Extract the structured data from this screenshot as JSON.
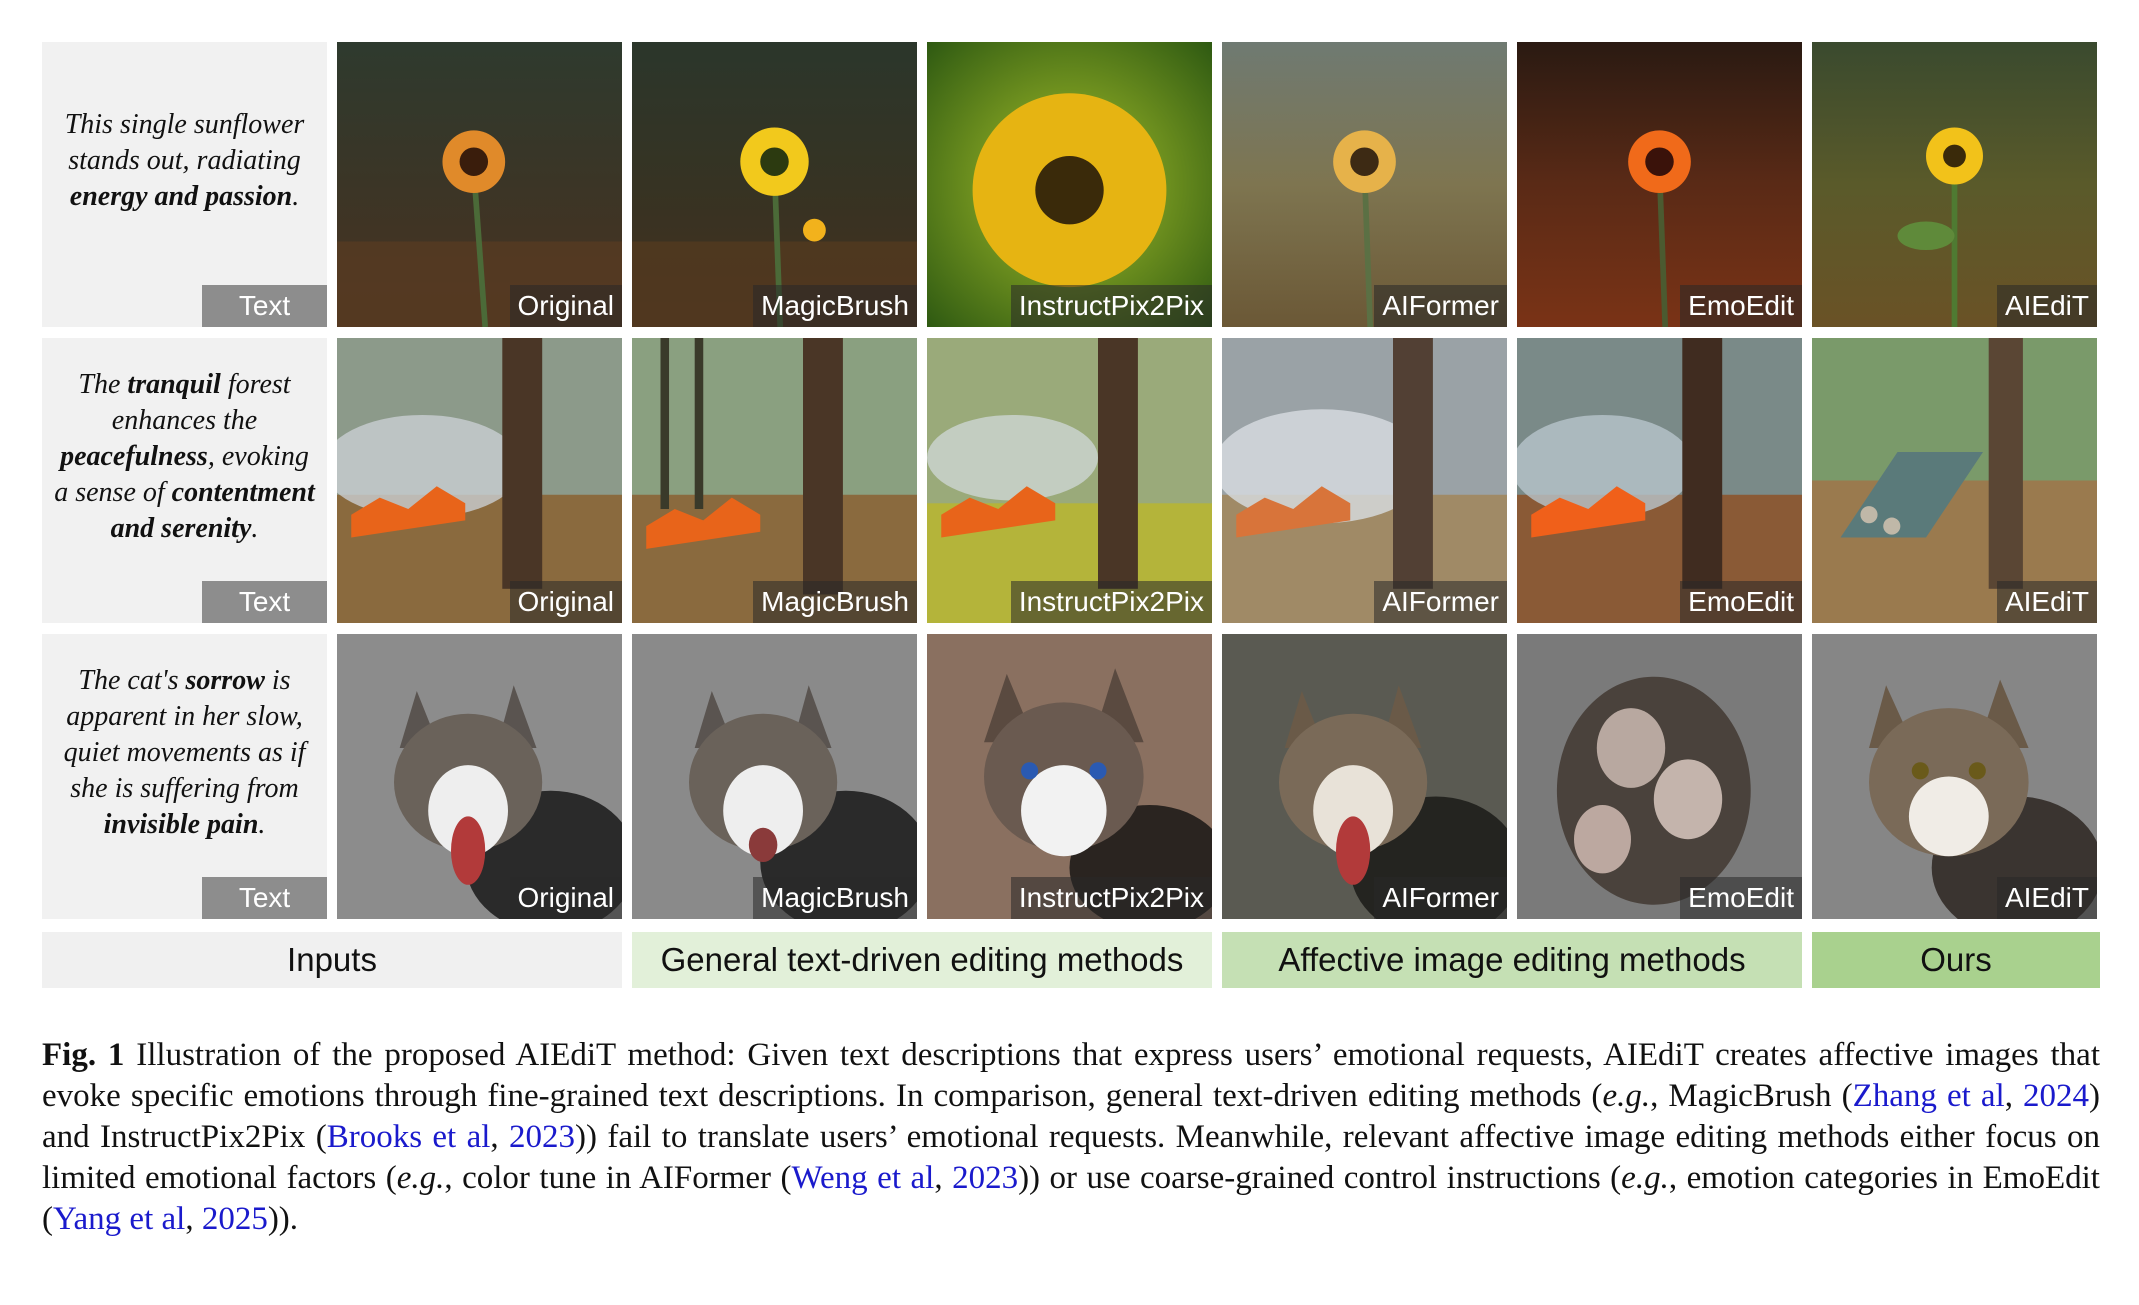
{
  "rows": [
    {
      "prompt_parts": [
        {
          "t": "This single sunflower stands out, radiating ",
          "b": false
        },
        {
          "t": "energy and passion",
          "b": true
        },
        {
          "t": ".",
          "b": false
        }
      ],
      "text_label": "Text",
      "labels": [
        "Original",
        "MagicBrush",
        "InstructPix2Pix",
        "AIFormer",
        "EmoEdit",
        "AIEdiT"
      ]
    },
    {
      "prompt_parts": [
        {
          "t": "The ",
          "b": false
        },
        {
          "t": "tranquil",
          "b": true
        },
        {
          "t": " forest enhances the ",
          "b": false
        },
        {
          "t": "peacefulness",
          "b": true
        },
        {
          "t": ", evoking a sense of ",
          "b": false
        },
        {
          "t": "contentment and serenity",
          "b": true
        },
        {
          "t": ".",
          "b": false
        }
      ],
      "text_label": "Text",
      "labels": [
        "Original",
        "MagicBrush",
        "InstructPix2Pix",
        "AIFormer",
        "EmoEdit",
        "AIEdiT"
      ]
    },
    {
      "prompt_parts": [
        {
          "t": "The cat's ",
          "b": false
        },
        {
          "t": "sorrow",
          "b": true
        },
        {
          "t": " is apparent in her slow, quiet movements as if she is suffering from ",
          "b": false
        },
        {
          "t": "invisible pain",
          "b": true
        },
        {
          "t": ".",
          "b": false
        }
      ],
      "text_label": "Text",
      "labels": [
        "Original",
        "MagicBrush",
        "InstructPix2Pix",
        "AIFormer",
        "EmoEdit",
        "AIEdiT"
      ]
    }
  ],
  "groups": [
    {
      "label": "Inputs",
      "color": "#f0f0f0"
    },
    {
      "label": "General text-driven editing methods",
      "color": "#e2f0d9"
    },
    {
      "label": "Affective image editing methods",
      "color": "#c5e0b4"
    },
    {
      "label": "Ours",
      "color": "#a9d18e"
    }
  ],
  "caption": {
    "fig": "Fig. 1",
    "parts": [
      {
        "t": " Illustration of the proposed AIEdiT method: Given text descriptions that express users’ emotional requests, AIEdiT creates affective images that evoke specific emotions through fine-grained text descriptions. In comparison, general text-driven editing methods (",
        "k": "n"
      },
      {
        "t": "e.g.",
        "k": "i"
      },
      {
        "t": ", MagicBrush (",
        "k": "n"
      },
      {
        "t": "Zhang et al",
        "k": "c"
      },
      {
        "t": ", ",
        "k": "n"
      },
      {
        "t": "2024",
        "k": "c"
      },
      {
        "t": ") and InstructPix2Pix (",
        "k": "n"
      },
      {
        "t": "Brooks et al",
        "k": "c"
      },
      {
        "t": ", ",
        "k": "n"
      },
      {
        "t": "2023",
        "k": "c"
      },
      {
        "t": ")) fail to translate users’ emotional requests. Meanwhile, relevant affective image editing methods either focus on limited emotional factors (",
        "k": "n"
      },
      {
        "t": "e.g.",
        "k": "i"
      },
      {
        "t": ", color tune in AIFormer (",
        "k": "n"
      },
      {
        "t": "Weng et al",
        "k": "c"
      },
      {
        "t": ", ",
        "k": "n"
      },
      {
        "t": "2023",
        "k": "c"
      },
      {
        "t": ")) or use coarse-grained control instructions (",
        "k": "n"
      },
      {
        "t": "e.g.",
        "k": "i"
      },
      {
        "t": ", emotion categories in EmoEdit (",
        "k": "n"
      },
      {
        "t": "Yang et al",
        "k": "c"
      },
      {
        "t": ", ",
        "k": "n"
      },
      {
        "t": "2025",
        "k": "c"
      },
      {
        "t": ")).",
        "k": "n"
      }
    ]
  }
}
